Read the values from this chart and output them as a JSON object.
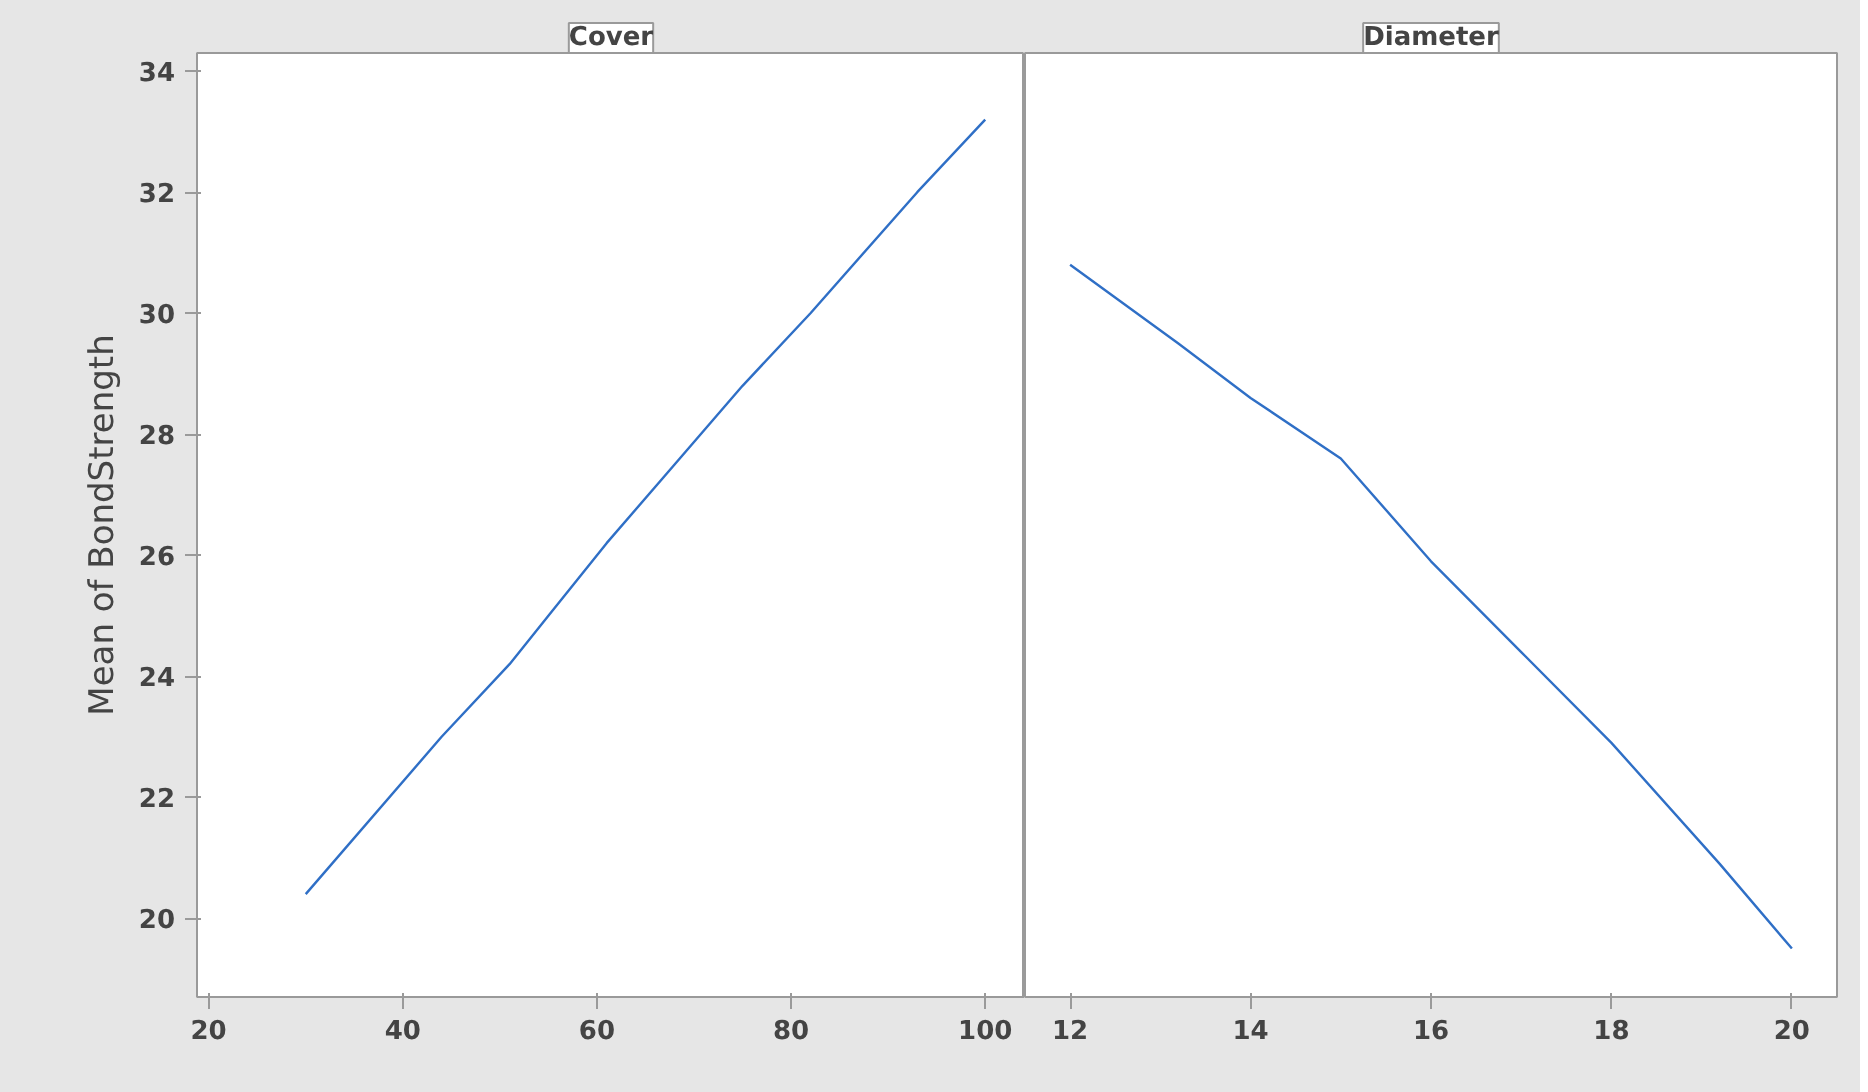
{
  "chart_data": [
    {
      "type": "line",
      "title": "Cover",
      "ylabel": "Mean of BondStrength",
      "x": [
        30,
        44,
        51,
        55,
        61,
        68,
        75,
        82,
        93,
        100
      ],
      "values": [
        20.4,
        23.0,
        24.2,
        25.0,
        26.2,
        27.5,
        28.8,
        30.0,
        32.0,
        33.2
      ],
      "color": "#2f6fc6",
      "xlim": [
        18.8,
        104.1
      ],
      "xticks": [
        20,
        40,
        60,
        80,
        100
      ],
      "ylim": [
        18.7,
        34.3
      ],
      "yticks": [
        20,
        22,
        24,
        26,
        28,
        30,
        32,
        34
      ],
      "grid": false
    },
    {
      "type": "line",
      "title": "Diameter",
      "x": [
        12,
        13.2,
        14,
        15,
        16,
        17,
        18,
        19.2,
        20
      ],
      "values": [
        30.8,
        29.5,
        28.6,
        27.6,
        25.9,
        24.4,
        22.9,
        20.9,
        19.5
      ],
      "color": "#2f6fc6",
      "xlim": [
        11.5,
        20.5
      ],
      "xticks": [
        12,
        14,
        16,
        18,
        20
      ],
      "ylim": [
        18.7,
        34.3
      ],
      "yticks": [
        20,
        22,
        24,
        26,
        28,
        30,
        32,
        34
      ],
      "tick_labels": "x",
      "grid": false
    }
  ]
}
